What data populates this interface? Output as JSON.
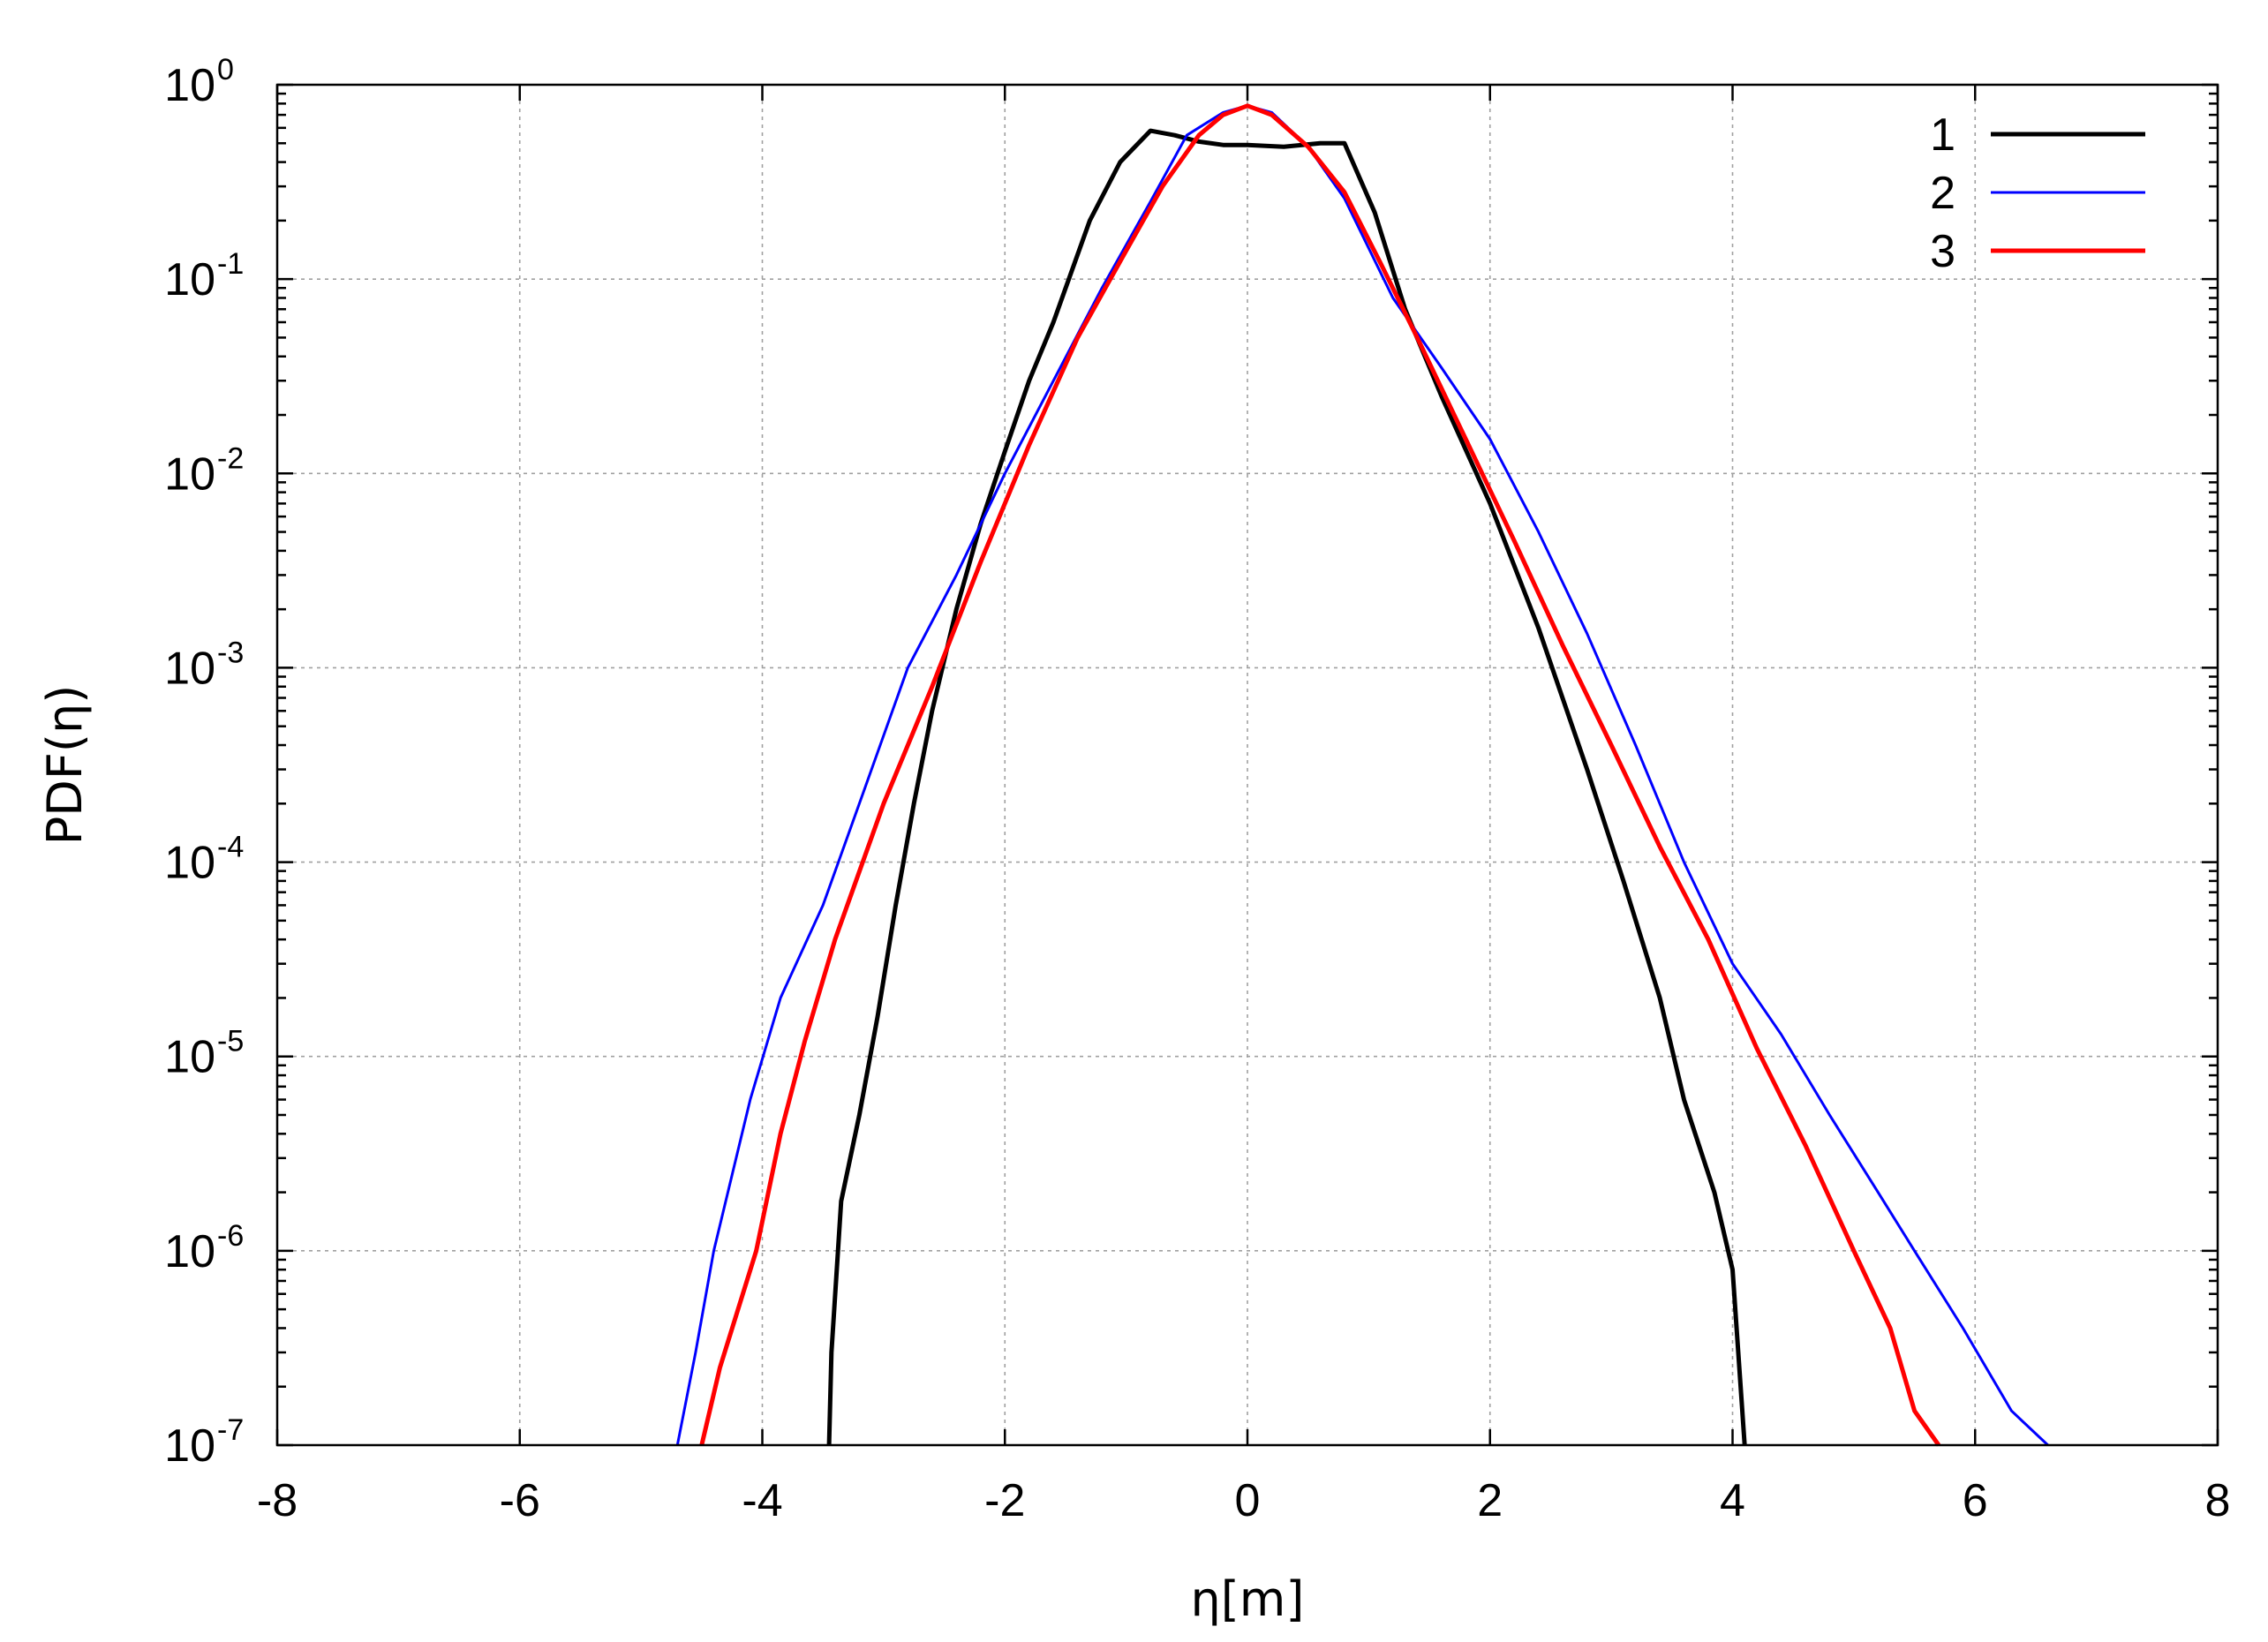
{
  "chart_data": {
    "type": "line",
    "xlabel": "η[m]",
    "ylabel": "PDF(η)",
    "xlim": [
      -8,
      8
    ],
    "ylim": [
      1e-07,
      1
    ],
    "yscale": "log",
    "grid": true,
    "legend_position": "top-right",
    "x_ticks": [
      "-8",
      "-6",
      "-4",
      "-2",
      "0",
      "2",
      "4",
      "6",
      "8"
    ],
    "y_ticks": [
      {
        "base": "10",
        "exp": "-7"
      },
      {
        "base": "10",
        "exp": "-6"
      },
      {
        "base": "10",
        "exp": "-5"
      },
      {
        "base": "10",
        "exp": "-4"
      },
      {
        "base": "10",
        "exp": "-3"
      },
      {
        "base": "10",
        "exp": "-2"
      },
      {
        "base": "10",
        "exp": "-1"
      },
      {
        "base": "10",
        "exp": "0"
      }
    ],
    "series": [
      {
        "name": "1",
        "color": "#000000",
        "points": [
          [
            -3.45,
            1e-07
          ],
          [
            -3.43,
            3e-07
          ],
          [
            -3.35,
            1.8e-06
          ],
          [
            -3.2,
            5e-06
          ],
          [
            -3.05,
            1.6e-05
          ],
          [
            -2.9,
            6e-05
          ],
          [
            -2.75,
            0.0002
          ],
          [
            -2.6,
            0.0006
          ],
          [
            -2.4,
            0.002
          ],
          [
            -2.2,
            0.0055
          ],
          [
            -2.0,
            0.013
          ],
          [
            -1.8,
            0.03
          ],
          [
            -1.6,
            0.06
          ],
          [
            -1.3,
            0.2
          ],
          [
            -1.05,
            0.4
          ],
          [
            -0.8,
            0.58
          ],
          [
            -0.6,
            0.55
          ],
          [
            -0.4,
            0.51
          ],
          [
            -0.2,
            0.49
          ],
          [
            0.0,
            0.49
          ],
          [
            0.3,
            0.48
          ],
          [
            0.6,
            0.5
          ],
          [
            0.8,
            0.5
          ],
          [
            1.05,
            0.22
          ],
          [
            1.3,
            0.07
          ],
          [
            1.6,
            0.025
          ],
          [
            2.0,
            0.007
          ],
          [
            2.4,
            0.0016
          ],
          [
            2.8,
            0.0003
          ],
          [
            3.1,
            8e-05
          ],
          [
            3.4,
            2e-05
          ],
          [
            3.6,
            6e-06
          ],
          [
            3.85,
            2e-06
          ],
          [
            4.0,
            8e-07
          ],
          [
            4.1,
            1e-07
          ]
        ]
      },
      {
        "name": "2",
        "color": "#0000ff",
        "points": [
          [
            -4.7,
            1e-07
          ],
          [
            -4.55,
            3e-07
          ],
          [
            -4.4,
            1e-06
          ],
          [
            -4.1,
            6e-06
          ],
          [
            -3.85,
            2e-05
          ],
          [
            -3.5,
            6e-05
          ],
          [
            -3.2,
            0.0002
          ],
          [
            -2.8,
            0.001
          ],
          [
            -2.4,
            0.003
          ],
          [
            -2.0,
            0.01
          ],
          [
            -1.6,
            0.03
          ],
          [
            -1.2,
            0.09
          ],
          [
            -0.8,
            0.25
          ],
          [
            -0.5,
            0.55
          ],
          [
            -0.2,
            0.72
          ],
          [
            0.0,
            0.78
          ],
          [
            0.2,
            0.72
          ],
          [
            0.5,
            0.48
          ],
          [
            0.8,
            0.26
          ],
          [
            1.2,
            0.08
          ],
          [
            1.6,
            0.035
          ],
          [
            2.0,
            0.015
          ],
          [
            2.4,
            0.005
          ],
          [
            2.8,
            0.0015
          ],
          [
            3.2,
            0.0004
          ],
          [
            3.6,
            0.0001
          ],
          [
            4.0,
            3e-05
          ],
          [
            4.4,
            1.3e-05
          ],
          [
            4.8,
            5e-06
          ],
          [
            5.2,
            2e-06
          ],
          [
            5.5,
            1e-06
          ],
          [
            5.9,
            4e-07
          ],
          [
            6.3,
            1.5e-07
          ],
          [
            6.6,
            1e-07
          ]
        ]
      },
      {
        "name": "3",
        "color": "#ff0000",
        "points": [
          [
            -4.5,
            1e-07
          ],
          [
            -4.35,
            2.5e-07
          ],
          [
            -4.05,
            1e-06
          ],
          [
            -3.85,
            4e-06
          ],
          [
            -3.65,
            1.2e-05
          ],
          [
            -3.4,
            4e-05
          ],
          [
            -3.0,
            0.0002
          ],
          [
            -2.6,
            0.0008
          ],
          [
            -2.2,
            0.0035
          ],
          [
            -1.8,
            0.014
          ],
          [
            -1.4,
            0.05
          ],
          [
            -1.0,
            0.14
          ],
          [
            -0.7,
            0.3
          ],
          [
            -0.4,
            0.55
          ],
          [
            -0.2,
            0.7
          ],
          [
            0.0,
            0.78
          ],
          [
            0.2,
            0.7
          ],
          [
            0.5,
            0.48
          ],
          [
            0.8,
            0.28
          ],
          [
            1.1,
            0.12
          ],
          [
            1.4,
            0.05
          ],
          [
            1.8,
            0.015
          ],
          [
            2.2,
            0.0045
          ],
          [
            2.6,
            0.0013
          ],
          [
            3.0,
            0.0004
          ],
          [
            3.4,
            0.00012
          ],
          [
            3.8,
            4e-05
          ],
          [
            4.2,
            1.1e-05
          ],
          [
            4.6,
            3.5e-06
          ],
          [
            5.0,
            1e-06
          ],
          [
            5.3,
            4e-07
          ],
          [
            5.5,
            1.5e-07
          ],
          [
            5.7,
            1e-07
          ]
        ]
      }
    ]
  }
}
